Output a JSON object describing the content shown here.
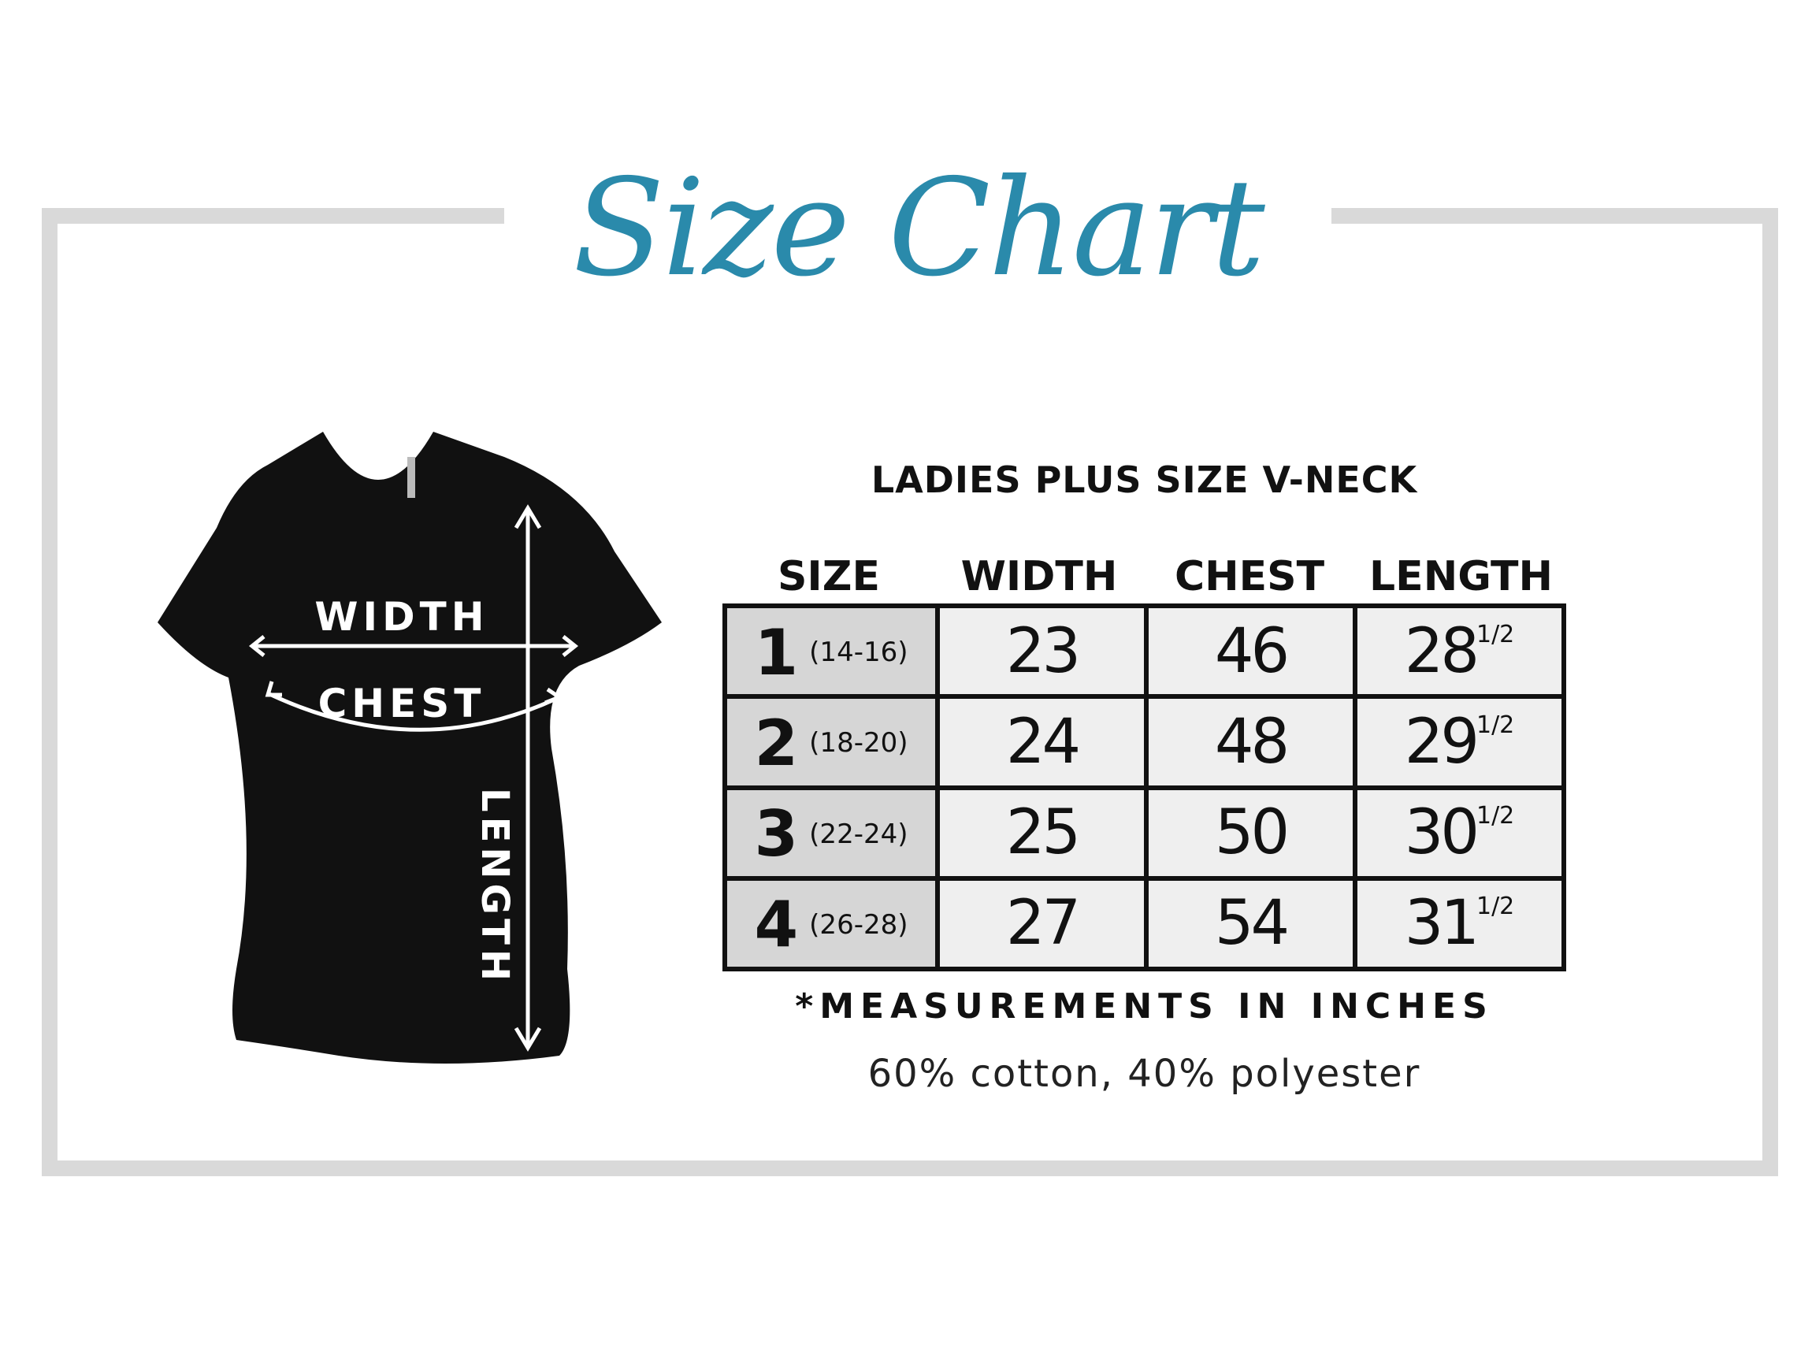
{
  "title": "Size Chart",
  "colors": {
    "title": "#2a8aab",
    "frame": "#d9d9d9",
    "size_cell": "#d6d6d6",
    "value_cell": "#efefef",
    "shirt": "#111111"
  },
  "shirt_labels": {
    "width": "WIDTH",
    "chest": "CHEST",
    "length": "LENGTH"
  },
  "product": "LADIES PLUS SIZE V-NECK",
  "columns": [
    "SIZE",
    "WIDTH",
    "CHEST",
    "LENGTH"
  ],
  "rows": [
    {
      "size": "1",
      "range": "(14-16)",
      "width": "23",
      "chest": "46",
      "length": "28",
      "length_fraction": "1/2"
    },
    {
      "size": "2",
      "range": "(18-20)",
      "width": "24",
      "chest": "48",
      "length": "29",
      "length_fraction": "1/2"
    },
    {
      "size": "3",
      "range": "(22-24)",
      "width": "25",
      "chest": "50",
      "length": "30",
      "length_fraction": "1/2"
    },
    {
      "size": "4",
      "range": "(26-28)",
      "width": "27",
      "chest": "54",
      "length": "31",
      "length_fraction": "1/2"
    }
  ],
  "note": "*MEASUREMENTS IN INCHES",
  "fabric": "60% cotton, 40% polyester"
}
